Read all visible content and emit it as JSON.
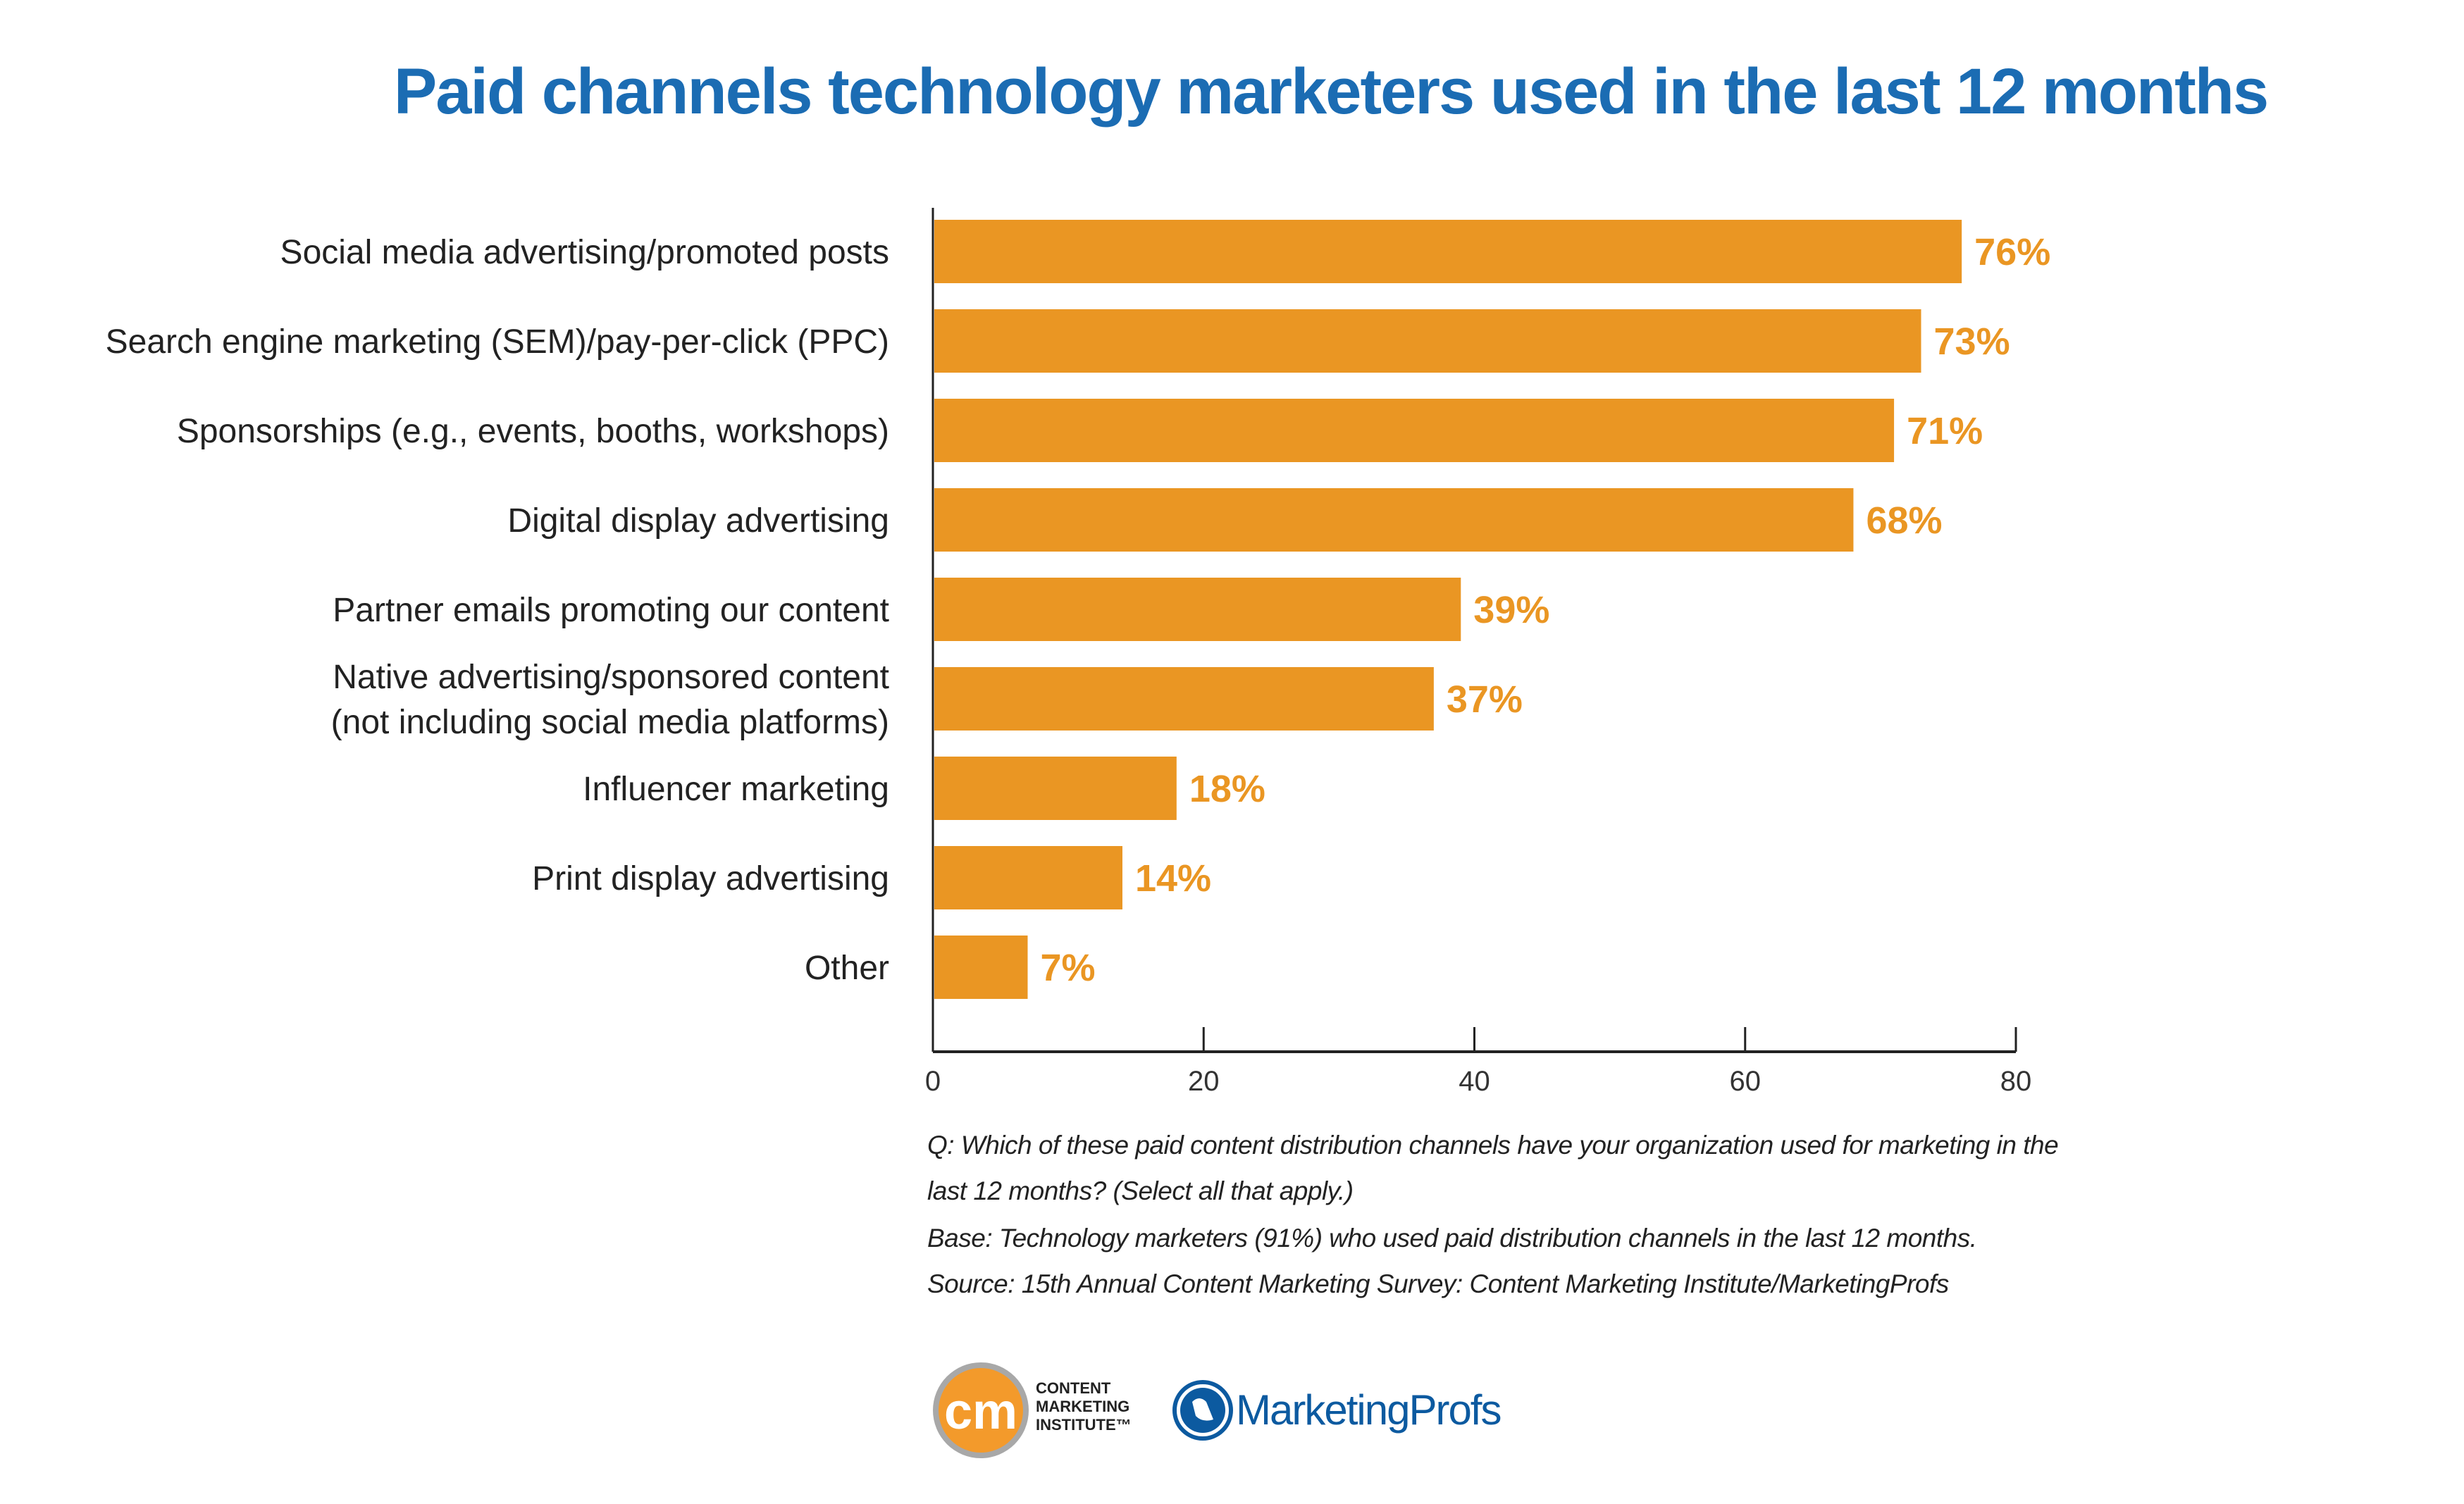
{
  "chart_data": {
    "type": "bar",
    "orientation": "horizontal",
    "title": "Paid channels technology marketers used in the last 12 months",
    "categories": [
      [
        "Social media advertising/promoted posts"
      ],
      [
        "Search engine marketing (SEM)/pay-per-click (PPC)"
      ],
      [
        "Sponsorships (e.g., events, booths, workshops)"
      ],
      [
        "Digital display advertising"
      ],
      [
        "Partner emails promoting our content"
      ],
      [
        "Native advertising/sponsored content",
        "(not including social media platforms)"
      ],
      [
        "Influencer marketing"
      ],
      [
        "Print display advertising"
      ],
      [
        "Other"
      ]
    ],
    "values": [
      76,
      73,
      71,
      68,
      39,
      37,
      18,
      14,
      7
    ],
    "data_labels": [
      "76%",
      "73%",
      "71%",
      "68%",
      "39%",
      "37%",
      "18%",
      "14%",
      "7%"
    ],
    "xlim": [
      0,
      80
    ],
    "xticks": [
      "0",
      "20",
      "40",
      "60",
      "80"
    ],
    "grid": false,
    "legend": "none",
    "bar_color": "#ea9623",
    "label_color": "#ea9623",
    "title_color": "#1b6cb3"
  },
  "footnotes": [
    "Q: Which of these paid content distribution channels have your organization used for marketing in the",
    "last 12 months? (Select all that apply.)",
    "Base: Technology marketers (91%) who used paid distribution channels in the last 12 months.",
    "Source: 15th Annual Content Marketing Survey: Content Marketing Institute/MarketingProfs"
  ],
  "logos": {
    "cmi": {
      "mark": "cm",
      "lines": [
        "CONTENT",
        "MARKETING",
        "INSTITUTE™"
      ]
    },
    "mprofs": {
      "text": "MarketingProfs"
    }
  }
}
